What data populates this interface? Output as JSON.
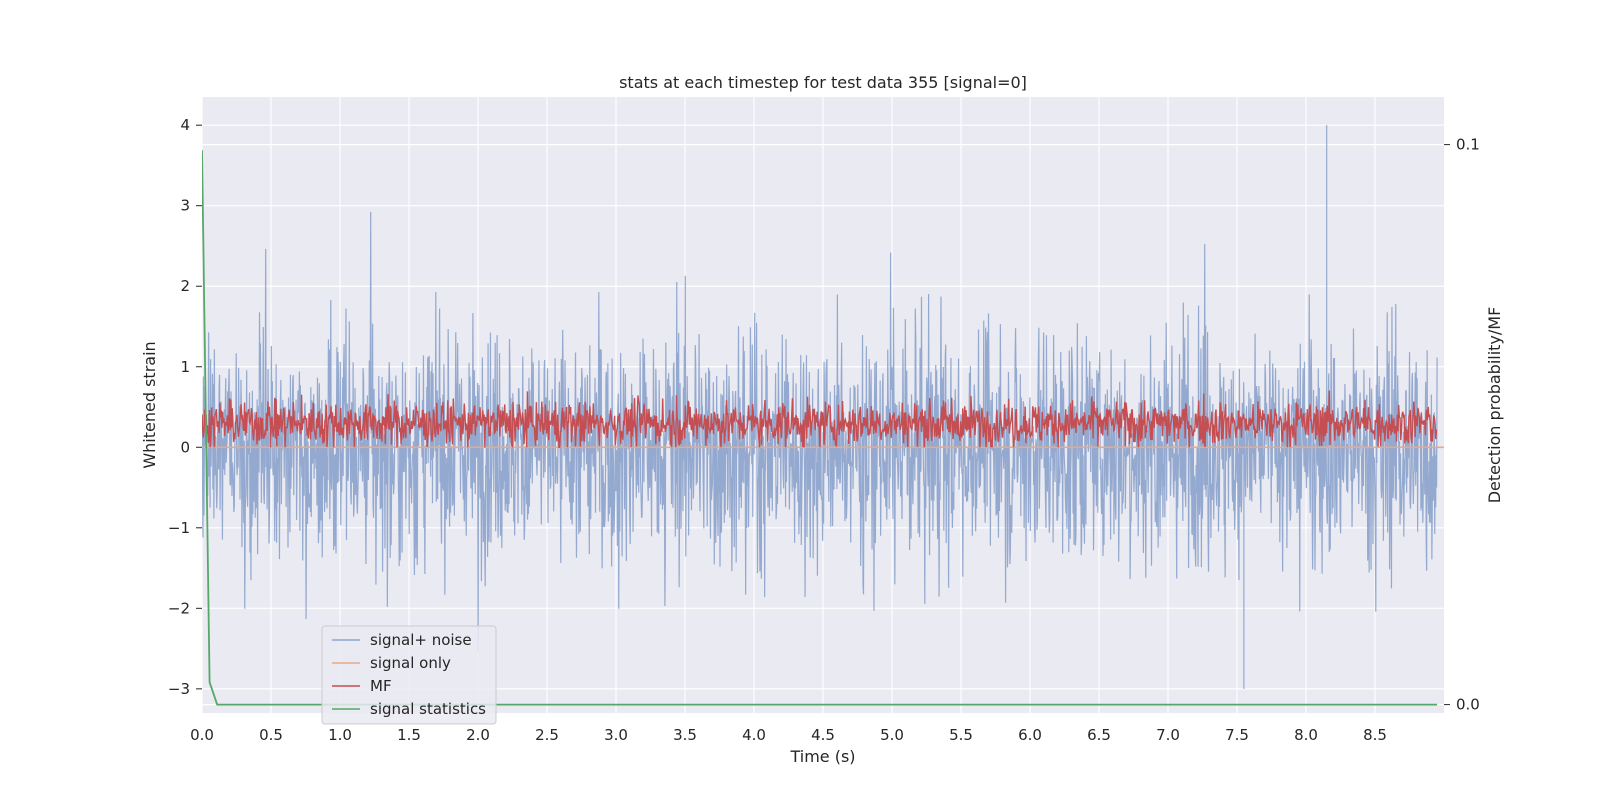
{
  "chart_data": {
    "type": "line",
    "title": "stats at each timestep for test data 355 [signal=0]",
    "xlabel": "Time (s)",
    "ylabel": "Whitened strain",
    "y2label": "Detection probability/MF",
    "xlim": [
      0.0,
      9.0
    ],
    "ylim": [
      -3.3,
      4.35
    ],
    "y2lim": [
      -0.0015,
      0.1085
    ],
    "x_ticks": [
      "0.0",
      "0.5",
      "1.0",
      "1.5",
      "2.0",
      "2.5",
      "3.0",
      "3.5",
      "4.0",
      "4.5",
      "5.0",
      "5.5",
      "6.0",
      "6.5",
      "7.0",
      "7.5",
      "8.0",
      "8.5"
    ],
    "y_ticks": [
      "4",
      "3",
      "2",
      "1",
      "0",
      "−1",
      "−2",
      "−3"
    ],
    "y2_ticks": [
      "0.1",
      "0.0"
    ],
    "grid": true,
    "legend_position": "lower-left",
    "series": [
      {
        "name": "signal+ noise",
        "color": "#8fa5cc",
        "axis": "left",
        "description_stats": {
          "envelope_max": 2.2,
          "envelope_min": -2.0,
          "peak_max": 4.0,
          "peak_max_x": 8.15,
          "peak_min": -3.0,
          "peak_min_x": 7.55
        }
      },
      {
        "name": "signal only",
        "color": "#e8a987",
        "axis": "left",
        "x": [
          0.0,
          9.0
        ],
        "y": [
          0.0,
          0.0
        ]
      },
      {
        "name": "MF",
        "color": "#c44e52",
        "axis": "left",
        "description_stats": {
          "mean": 0.3,
          "min": 0.0,
          "max": 0.9
        }
      },
      {
        "name": "signal statistics",
        "color": "#55a868",
        "axis": "right",
        "x": [
          0.0,
          0.055,
          0.11,
          0.5,
          1.0,
          2.0,
          3.0,
          4.0,
          5.0,
          6.0,
          7.0,
          8.0,
          8.95
        ],
        "y": [
          0.099,
          0.004,
          0.0,
          0.0,
          0.0,
          0.0,
          0.0,
          0.0,
          0.0,
          0.0,
          0.0,
          0.0,
          0.0
        ]
      }
    ]
  }
}
